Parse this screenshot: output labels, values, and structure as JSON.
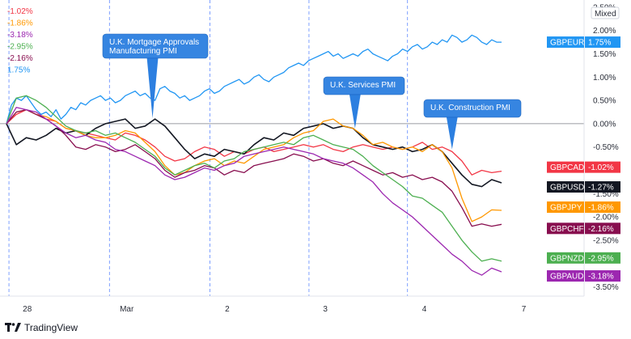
{
  "chart_data": {
    "type": "line",
    "y_unit": "%",
    "ylim": [
      -3.7,
      2.55
    ],
    "xlim": [
      0,
      100
    ],
    "x_tick_labels": [
      {
        "x": 4.2,
        "label": "28"
      },
      {
        "x": 24.3,
        "label": "Mar"
      },
      {
        "x": 44.6,
        "label": "2"
      },
      {
        "x": 64.4,
        "label": "3"
      },
      {
        "x": 84.4,
        "label": "4"
      },
      {
        "x": 104.5,
        "label": "7"
      }
    ],
    "y_ticks": [
      {
        "v": 2.5,
        "label": "2.50%"
      },
      {
        "v": 2.0,
        "label": "2.00%"
      },
      {
        "v": 1.5,
        "label": "1.50%"
      },
      {
        "v": 1.0,
        "label": "1.00%"
      },
      {
        "v": 0.5,
        "label": "0.50%"
      },
      {
        "v": 0.0,
        "label": "0.00%"
      },
      {
        "v": -0.5,
        "label": "-0.50%"
      },
      {
        "v": -1.5,
        "label": "-1.50%"
      },
      {
        "v": -2.0,
        "label": "-2.00%"
      },
      {
        "v": -2.5,
        "label": "-2.50%"
      },
      {
        "v": -3.5,
        "label": "-3.50%"
      }
    ],
    "scale_label": "Mixed",
    "session_breaks": [
      0.5,
      20.8,
      41.1,
      61.1,
      81.0
    ],
    "zero_line": 0,
    "annotations": [
      {
        "text": [
          "U.K. Mortgage Approvals",
          "Manufacturing PMI"
        ],
        "x": 29.5,
        "y": 0.12
      },
      {
        "text": [
          "U.K. Services PMI"
        ],
        "x": 70.4,
        "y": -0.1
      },
      {
        "text": [
          "U.K. Construction PMI"
        ],
        "x": 90.0,
        "y": -0.55
      }
    ],
    "legend_values": [
      {
        "text": "-1.02%",
        "color": "#f23645"
      },
      {
        "text": "-1.86%",
        "color": "#ff9800"
      },
      {
        "text": "-3.18%",
        "color": "#9c27b0"
      },
      {
        "text": "-2.95%",
        "color": "#4caf50"
      },
      {
        "text": "-2.16%",
        "color": "#880e4f"
      },
      {
        "text": "1.75%",
        "color": "#2196f3"
      }
    ],
    "series": [
      {
        "name": "GBPEUR",
        "value_label": "1.75%",
        "last": 1.75,
        "color": "#2196f3",
        "x": [
          0,
          1,
          2,
          3,
          4,
          5,
          6,
          7,
          8,
          9,
          10,
          11,
          12,
          13,
          14,
          15,
          16,
          17,
          18,
          19,
          20,
          21,
          22,
          23,
          24,
          25,
          26,
          27,
          28,
          29,
          30,
          31,
          32,
          33,
          34,
          35,
          36,
          37,
          38,
          39,
          40,
          41,
          42,
          43,
          44,
          45,
          46,
          47,
          48,
          49,
          50,
          51,
          52,
          53,
          54,
          55,
          56,
          57,
          58,
          59,
          60,
          61,
          62,
          63,
          64,
          65,
          66,
          67,
          68,
          69,
          70,
          71,
          72,
          73,
          74,
          75,
          76,
          77,
          78,
          79,
          80,
          81,
          82,
          83,
          84,
          85,
          86,
          87,
          88,
          89,
          90,
          91,
          92,
          93,
          94,
          95,
          96,
          97,
          98,
          99,
          100
        ],
        "y": [
          0,
          0.4,
          0.55,
          0.5,
          0.6,
          0.45,
          0.3,
          0.2,
          0.25,
          0.15,
          0.3,
          0.1,
          0.2,
          0.35,
          0.3,
          0.45,
          0.4,
          0.5,
          0.55,
          0.6,
          0.5,
          0.55,
          0.45,
          0.5,
          0.6,
          0.65,
          0.7,
          0.6,
          0.65,
          0.55,
          0.5,
          0.75,
          0.8,
          0.7,
          0.65,
          0.55,
          0.6,
          0.5,
          0.55,
          0.6,
          0.7,
          0.75,
          0.65,
          0.7,
          0.8,
          0.85,
          0.9,
          0.95,
          0.85,
          0.9,
          1.0,
          1.05,
          0.95,
          0.9,
          1.0,
          1.05,
          1.1,
          1.2,
          1.25,
          1.3,
          1.25,
          1.35,
          1.4,
          1.45,
          1.5,
          1.55,
          1.45,
          1.5,
          1.4,
          1.45,
          1.5,
          1.45,
          1.55,
          1.6,
          1.5,
          1.45,
          1.4,
          1.35,
          1.45,
          1.5,
          1.6,
          1.55,
          1.65,
          1.7,
          1.6,
          1.65,
          1.75,
          1.7,
          1.8,
          1.75,
          1.9,
          1.85,
          1.75,
          1.8,
          1.9,
          1.85,
          1.75,
          1.7,
          1.8,
          1.75,
          1.75
        ]
      },
      {
        "name": "GBPCAD",
        "value_label": "-1.02%",
        "last": -1.02,
        "color": "#f23645",
        "x": [
          0,
          2,
          4,
          6,
          8,
          10,
          12,
          14,
          16,
          18,
          20,
          22,
          24,
          26,
          28,
          30,
          32,
          34,
          36,
          38,
          40,
          42,
          44,
          46,
          48,
          50,
          52,
          54,
          56,
          58,
          60,
          62,
          64,
          66,
          68,
          70,
          72,
          74,
          76,
          78,
          80,
          82,
          84,
          86,
          88,
          90,
          92,
          94,
          96,
          98,
          100
        ],
        "y": [
          0,
          0.2,
          0.3,
          0.2,
          0.1,
          0.05,
          -0.1,
          -0.15,
          -0.2,
          -0.25,
          -0.3,
          -0.35,
          -0.2,
          -0.25,
          -0.35,
          -0.5,
          -0.7,
          -0.8,
          -0.75,
          -0.6,
          -0.5,
          -0.55,
          -0.7,
          -0.6,
          -0.65,
          -0.55,
          -0.5,
          -0.6,
          -0.55,
          -0.5,
          -0.45,
          -0.5,
          -0.45,
          -0.55,
          -0.6,
          -0.5,
          -0.45,
          -0.5,
          -0.55,
          -0.5,
          -0.55,
          -0.5,
          -0.4,
          -0.55,
          -0.5,
          -0.6,
          -0.8,
          -1.1,
          -1.0,
          -1.05,
          -1.02
        ]
      },
      {
        "name": "GBPUSD",
        "value_label": "-1.27%",
        "last": -1.27,
        "color": "#131722",
        "x": [
          0,
          2,
          4,
          6,
          8,
          10,
          12,
          14,
          16,
          18,
          20,
          22,
          24,
          26,
          28,
          30,
          32,
          34,
          36,
          38,
          40,
          42,
          44,
          46,
          48,
          50,
          52,
          54,
          56,
          58,
          60,
          62,
          64,
          66,
          68,
          70,
          72,
          74,
          76,
          78,
          80,
          82,
          84,
          86,
          88,
          90,
          92,
          94,
          96,
          98,
          100
        ],
        "y": [
          0,
          -0.45,
          -0.3,
          -0.35,
          -0.25,
          -0.1,
          -0.2,
          -0.15,
          -0.25,
          -0.1,
          0.0,
          0.05,
          0.1,
          -0.1,
          -0.05,
          0.1,
          -0.05,
          -0.3,
          -0.55,
          -0.75,
          -0.65,
          -0.7,
          -0.55,
          -0.6,
          -0.65,
          -0.45,
          -0.3,
          -0.35,
          -0.2,
          -0.25,
          -0.1,
          -0.05,
          0.0,
          -0.1,
          -0.05,
          -0.1,
          -0.3,
          -0.45,
          -0.5,
          -0.55,
          -0.5,
          -0.6,
          -0.55,
          -0.45,
          -0.6,
          -0.85,
          -1.1,
          -1.3,
          -1.35,
          -1.2,
          -1.27
        ]
      },
      {
        "name": "GBPJPY",
        "value_label": "-1.86%",
        "last": -1.86,
        "color": "#ff9800",
        "x": [
          0,
          2,
          4,
          6,
          8,
          10,
          12,
          14,
          16,
          18,
          20,
          22,
          24,
          26,
          28,
          30,
          32,
          34,
          36,
          38,
          40,
          42,
          44,
          46,
          48,
          50,
          52,
          54,
          56,
          58,
          60,
          62,
          64,
          66,
          68,
          70,
          72,
          74,
          76,
          78,
          80,
          82,
          84,
          86,
          88,
          90,
          92,
          94,
          96,
          98,
          100
        ],
        "y": [
          0,
          0.25,
          0.3,
          0.2,
          0.15,
          0.05,
          -0.1,
          -0.15,
          -0.25,
          -0.3,
          -0.3,
          -0.25,
          -0.15,
          -0.2,
          -0.4,
          -0.6,
          -0.9,
          -1.1,
          -1.05,
          -0.9,
          -0.8,
          -0.75,
          -0.9,
          -0.8,
          -0.85,
          -0.7,
          -0.55,
          -0.5,
          -0.45,
          -0.3,
          -0.2,
          -0.15,
          0.05,
          0.1,
          -0.05,
          -0.1,
          -0.25,
          -0.45,
          -0.4,
          -0.5,
          -0.55,
          -0.5,
          -0.6,
          -0.45,
          -0.6,
          -0.95,
          -1.6,
          -2.1,
          -2.0,
          -1.85,
          -1.86
        ]
      },
      {
        "name": "GBPCHF",
        "value_label": "-2.16%",
        "last": -2.16,
        "color": "#880e4f",
        "x": [
          0,
          2,
          4,
          6,
          8,
          10,
          12,
          14,
          16,
          18,
          20,
          22,
          24,
          26,
          28,
          30,
          32,
          34,
          36,
          38,
          40,
          42,
          44,
          46,
          48,
          50,
          52,
          54,
          56,
          58,
          60,
          62,
          64,
          66,
          68,
          70,
          72,
          74,
          76,
          78,
          80,
          82,
          84,
          86,
          88,
          90,
          92,
          94,
          96,
          98,
          100
        ],
        "y": [
          0,
          0.25,
          0.3,
          0.2,
          0.1,
          -0.05,
          -0.25,
          -0.5,
          -0.55,
          -0.45,
          -0.5,
          -0.6,
          -0.55,
          -0.45,
          -0.6,
          -0.75,
          -1.0,
          -1.15,
          -1.05,
          -1.0,
          -0.9,
          -0.95,
          -1.1,
          -1.0,
          -1.05,
          -0.9,
          -0.85,
          -0.8,
          -0.75,
          -0.65,
          -0.7,
          -0.8,
          -0.75,
          -0.85,
          -0.9,
          -0.8,
          -0.9,
          -1.0,
          -1.1,
          -1.05,
          -1.15,
          -1.1,
          -1.2,
          -1.15,
          -1.25,
          -1.45,
          -1.8,
          -2.2,
          -2.15,
          -2.2,
          -2.16
        ]
      },
      {
        "name": "GBPNZD",
        "value_label": "-2.95%",
        "last": -2.95,
        "color": "#4caf50",
        "x": [
          0,
          2,
          4,
          6,
          8,
          10,
          12,
          14,
          16,
          18,
          20,
          22,
          24,
          26,
          28,
          30,
          32,
          34,
          36,
          38,
          40,
          42,
          44,
          46,
          48,
          50,
          52,
          54,
          56,
          58,
          60,
          62,
          64,
          66,
          68,
          70,
          72,
          74,
          76,
          78,
          80,
          82,
          84,
          86,
          88,
          90,
          92,
          94,
          96,
          98,
          100
        ],
        "y": [
          0,
          0.55,
          0.6,
          0.5,
          0.35,
          0.15,
          -0.05,
          -0.15,
          -0.2,
          -0.15,
          -0.25,
          -0.2,
          -0.3,
          -0.4,
          -0.55,
          -0.7,
          -0.95,
          -1.1,
          -1.0,
          -0.9,
          -0.85,
          -0.95,
          -0.8,
          -0.75,
          -0.6,
          -0.55,
          -0.5,
          -0.45,
          -0.4,
          -0.45,
          -0.3,
          -0.25,
          -0.35,
          -0.45,
          -0.5,
          -0.55,
          -0.7,
          -0.9,
          -1.05,
          -1.2,
          -1.35,
          -1.55,
          -1.6,
          -1.75,
          -1.9,
          -2.2,
          -2.5,
          -2.75,
          -2.95,
          -2.9,
          -2.95
        ]
      },
      {
        "name": "GBPAUD",
        "value_label": "-3.18%",
        "last": -3.18,
        "color": "#9c27b0",
        "x": [
          0,
          2,
          4,
          6,
          8,
          10,
          12,
          14,
          16,
          18,
          20,
          22,
          24,
          26,
          28,
          30,
          32,
          34,
          36,
          38,
          40,
          42,
          44,
          46,
          48,
          50,
          52,
          54,
          56,
          58,
          60,
          62,
          64,
          66,
          68,
          70,
          72,
          74,
          76,
          78,
          80,
          82,
          84,
          86,
          88,
          90,
          92,
          94,
          96,
          98,
          100
        ],
        "y": [
          0,
          0.35,
          0.3,
          0.25,
          0.1,
          -0.05,
          -0.2,
          -0.3,
          -0.25,
          -0.35,
          -0.4,
          -0.55,
          -0.6,
          -0.7,
          -0.8,
          -0.9,
          -1.1,
          -1.2,
          -1.15,
          -1.05,
          -0.95,
          -1.0,
          -0.9,
          -0.85,
          -0.7,
          -0.65,
          -0.6,
          -0.55,
          -0.5,
          -0.55,
          -0.6,
          -0.65,
          -0.75,
          -0.8,
          -0.85,
          -0.95,
          -1.1,
          -1.25,
          -1.5,
          -1.7,
          -1.85,
          -2.0,
          -2.2,
          -2.4,
          -2.6,
          -2.8,
          -2.95,
          -3.15,
          -3.25,
          -3.1,
          -3.18
        ]
      }
    ]
  },
  "branding": {
    "name": "TradingView"
  }
}
